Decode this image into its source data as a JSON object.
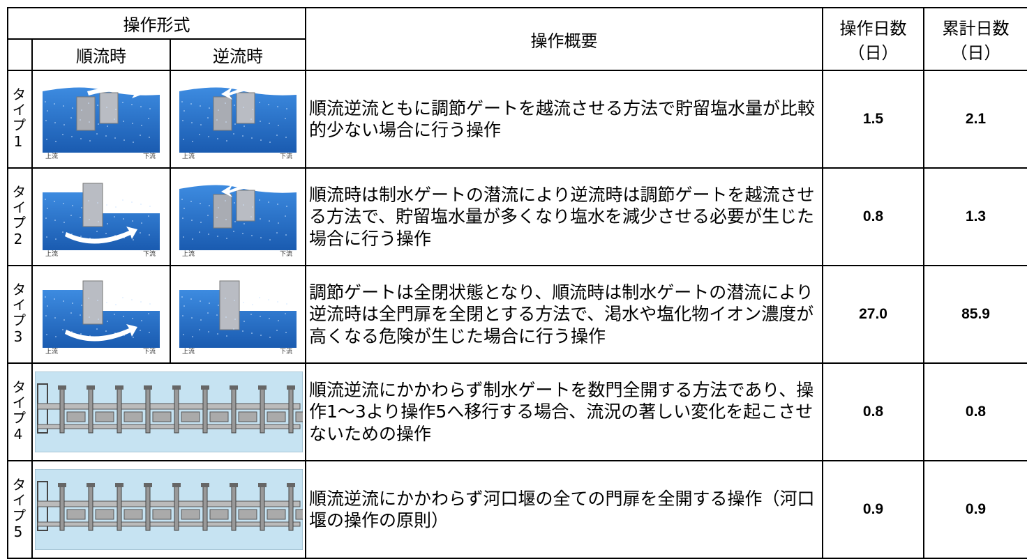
{
  "header": {
    "operation_form": "操作形式",
    "forward": "順流時",
    "reverse": "逆流時",
    "summary": "操作概要",
    "days_title": "操作日数",
    "days_unit": "（日）",
    "cumulative_title": "累計日数",
    "cumulative_unit": "（日）"
  },
  "figure_labels": {
    "upstream": "上流",
    "downstream": "下流"
  },
  "rows": [
    {
      "label": "タイプ1",
      "summary": "順流逆流ともに調節ゲートを越流させる方法で貯留塩水量が比較的少ない場合に行う操作",
      "days": "1.5",
      "cumulative": "2.1"
    },
    {
      "label": "タイプ2",
      "summary": "順流時は制水ゲートの潜流により逆流時は調節ゲートを越流させる方法で、貯留塩水量が多くなり塩水を減少させる必要が生じた場合に行う操作",
      "days": "0.8",
      "cumulative": "1.3"
    },
    {
      "label": "タイプ3",
      "summary": "調節ゲートは全閉状態となり、順流時は制水ゲートの潜流により逆流時は全門扉を全閉とする方法で、渇水や塩化物イオン濃度が高くなる危険が生じた場合に行う操作",
      "days": "27.0",
      "cumulative": "85.9"
    },
    {
      "label": "タイプ4",
      "summary": "順流逆流にかかわらず制水ゲートを数門全開する方法であり、操作1～3より操作5へ移行する場合、流況の著しい変化を起こさせないための操作",
      "days": "0.8",
      "cumulative": "0.8"
    },
    {
      "label": "タイプ5",
      "summary": "順流逆流にかかわらず河口堰の全ての門扉を全開する操作（河口堰の操作の原則）",
      "days": "0.9",
      "cumulative": "0.9"
    }
  ]
}
